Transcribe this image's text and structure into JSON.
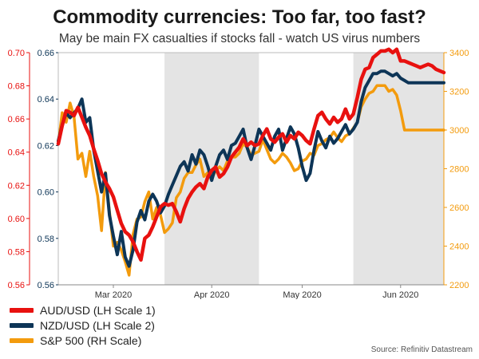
{
  "title": "Commodity currencies: Too far, too fast?",
  "subtitle": "May be main FX casualties if stocks fall - watch US virus numbers",
  "source": "Source: Refinitiv Datastream",
  "colors": {
    "aud": "#e8110f",
    "nzd": "#0d3557",
    "spx": "#f39b0d",
    "shade": "#e4e4e4",
    "axis": "#7b7b7b"
  },
  "chart_data": {
    "type": "line",
    "title": "Commodity currencies: Too far, too fast?",
    "x": [
      0,
      1,
      2,
      3,
      4,
      5,
      6,
      7,
      8,
      9,
      10,
      11,
      12,
      13,
      14,
      15,
      16,
      17,
      18,
      19,
      20,
      21,
      22,
      23,
      24,
      25,
      26,
      27,
      28,
      29,
      30,
      31,
      32,
      33,
      34,
      35,
      36,
      37,
      38,
      39,
      40,
      41,
      42,
      43,
      44,
      45,
      46,
      47,
      48,
      49,
      50,
      51,
      52,
      53,
      54,
      55,
      56,
      57,
      58,
      59,
      60,
      61,
      62,
      63,
      64,
      65,
      66,
      67,
      68,
      69,
      70,
      71,
      72,
      73,
      74,
      75,
      76,
      77,
      78,
      79,
      80,
      81,
      82,
      83,
      84,
      85,
      86,
      87,
      88,
      89,
      90,
      91,
      92,
      93,
      94,
      95,
      96,
      97,
      98
    ],
    "xlim": [
      0,
      98
    ],
    "x_ticks": [
      {
        "label": "Mar 2020",
        "x": 14
      },
      {
        "label": "Apr 2020",
        "x": 39
      },
      {
        "label": "May 2020",
        "x": 62
      },
      {
        "label": "Jun 2020",
        "x": 87
      }
    ],
    "shaded_periods": [
      [
        27,
        51
      ],
      [
        75,
        98
      ]
    ],
    "axes": {
      "left1": {
        "label": "LH Scale 1",
        "ylim": [
          0.56,
          0.7
        ],
        "ticks": [
          "0.56",
          "0.58",
          "0.60",
          "0.62",
          "0.64",
          "0.66",
          "0.68",
          "0.70"
        ],
        "color": "#e8110f"
      },
      "left2": {
        "label": "LH Scale 2",
        "ylim": [
          0.56,
          0.66
        ],
        "ticks": [
          "0.56",
          "0.58",
          "0.60",
          "0.62",
          "0.64",
          "0.66"
        ],
        "color": "#0d3557"
      },
      "right": {
        "label": "RH Scale",
        "ylim": [
          2200,
          3400
        ],
        "ticks": [
          "2200",
          "2400",
          "2600",
          "2800",
          "3000",
          "3200",
          "3400"
        ],
        "color": "#f39b0d"
      }
    },
    "series": [
      {
        "name": "AUD/USD (LH Scale 1)",
        "axis": "left1",
        "color": "#e8110f",
        "width": 4.5,
        "values": [
          0.645,
          0.656,
          0.665,
          0.664,
          0.662,
          0.667,
          0.661,
          0.655,
          0.65,
          0.642,
          0.635,
          0.627,
          0.622,
          0.618,
          0.613,
          0.605,
          0.597,
          0.592,
          0.59,
          0.586,
          0.58,
          0.575,
          0.588,
          0.59,
          0.595,
          0.601,
          0.607,
          0.609,
          0.608,
          0.609,
          0.604,
          0.598,
          0.606,
          0.612,
          0.616,
          0.619,
          0.621,
          0.618,
          0.625,
          0.629,
          0.631,
          0.625,
          0.627,
          0.631,
          0.637,
          0.64,
          0.643,
          0.648,
          0.644,
          0.646,
          0.644,
          0.645,
          0.65,
          0.654,
          0.648,
          0.646,
          0.649,
          0.651,
          0.646,
          0.65,
          0.648,
          0.652,
          0.65,
          0.647,
          0.645,
          0.654,
          0.662,
          0.664,
          0.66,
          0.657,
          0.661,
          0.658,
          0.66,
          0.666,
          0.66,
          0.663,
          0.673,
          0.684,
          0.69,
          0.691,
          0.697,
          0.699,
          0.701,
          0.701,
          0.702,
          0.7,
          0.702,
          0.695,
          0.695,
          0.694,
          0.693,
          0.692,
          0.691,
          0.692,
          0.693,
          0.692,
          0.69,
          0.689,
          0.688
        ]
      },
      {
        "name": "NZD/USD (LH Scale 2)",
        "axis": "left2",
        "color": "#0d3557",
        "width": 4,
        "values": [
          0.622,
          0.629,
          0.634,
          0.632,
          0.634,
          0.636,
          0.64,
          0.63,
          0.632,
          0.618,
          0.609,
          0.6,
          0.608,
          0.59,
          0.581,
          0.573,
          0.583,
          0.572,
          0.568,
          0.575,
          0.587,
          0.592,
          0.588,
          0.596,
          0.599,
          0.596,
          0.591,
          0.594,
          0.599,
          0.603,
          0.607,
          0.611,
          0.613,
          0.609,
          0.616,
          0.612,
          0.618,
          0.616,
          0.611,
          0.605,
          0.611,
          0.616,
          0.618,
          0.614,
          0.62,
          0.621,
          0.624,
          0.627,
          0.619,
          0.614,
          0.62,
          0.627,
          0.624,
          0.621,
          0.618,
          0.624,
          0.627,
          0.618,
          0.623,
          0.628,
          0.625,
          0.619,
          0.611,
          0.605,
          0.608,
          0.618,
          0.626,
          0.622,
          0.619,
          0.624,
          0.621,
          0.623,
          0.626,
          0.629,
          0.625,
          0.627,
          0.63,
          0.639,
          0.645,
          0.648,
          0.651,
          0.651,
          0.652,
          0.652,
          0.651,
          0.65,
          0.651,
          0.649,
          0.648,
          0.647,
          0.647,
          0.647,
          0.647,
          0.647,
          0.647,
          0.647,
          0.647,
          0.647,
          0.647
        ]
      },
      {
        "name": "S&P 500 (RH Scale)",
        "axis": "right",
        "color": "#f39b0d",
        "width": 3.5,
        "values": [
          2930,
          3090,
          3040,
          3140,
          3070,
          2850,
          2880,
          2760,
          2890,
          2760,
          2660,
          2480,
          2780,
          2580,
          2400,
          2420,
          2380,
          2320,
          2250,
          2460,
          2540,
          2550,
          2630,
          2680,
          2540,
          2600,
          2560,
          2470,
          2490,
          2520,
          2650,
          2680,
          2750,
          2780,
          2780,
          2820,
          2850,
          2760,
          2780,
          2750,
          2790,
          2810,
          2790,
          2840,
          2860,
          2860,
          2880,
          2930,
          2910,
          2870,
          2880,
          2890,
          2950,
          2900,
          2850,
          2830,
          2850,
          2880,
          2860,
          2830,
          2790,
          2800,
          2840,
          2850,
          2880,
          2870,
          2920,
          2930,
          2950,
          2960,
          2990,
          2960,
          2940,
          2970,
          2980,
          3010,
          3040,
          3120,
          3160,
          3190,
          3200,
          3230,
          3230,
          3230,
          3200,
          3210,
          3180,
          3100,
          3000,
          3000,
          3000,
          3000,
          3000,
          3000,
          3000,
          3000,
          3000,
          3000,
          3000
        ]
      }
    ]
  }
}
